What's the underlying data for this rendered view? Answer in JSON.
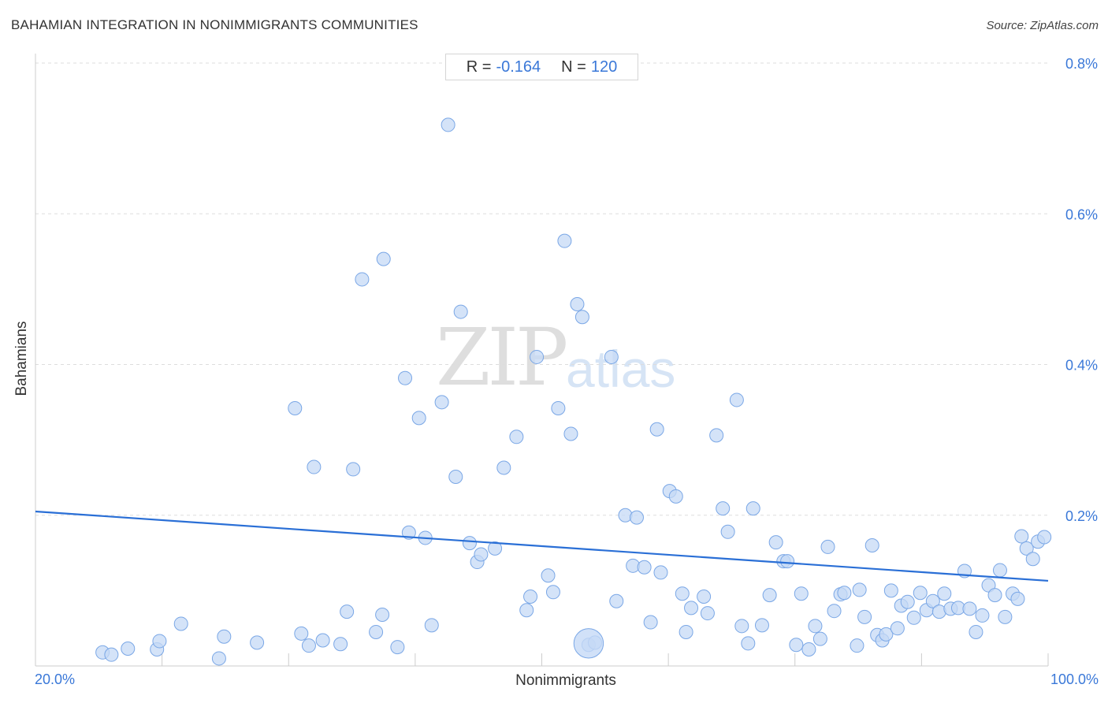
{
  "header": {
    "title": "BAHAMIAN INTEGRATION IN NONIMMIGRANTS COMMUNITIES",
    "source": "Source: ZipAtlas.com"
  },
  "stats": {
    "r_label": "R =",
    "r_value": "-0.164",
    "n_label": "N =",
    "n_value": "120"
  },
  "watermark": {
    "zip": "ZIP",
    "atlas": "atlas"
  },
  "colors": {
    "accent": "#3a78d8",
    "point_fill": "#c5daf6",
    "point_stroke": "#7aa7e6",
    "trend": "#2a6fd6",
    "grid": "#dddddd"
  },
  "chart_data": {
    "type": "scatter",
    "title": "BAHAMIAN INTEGRATION IN NONIMMIGRANTS COMMUNITIES",
    "xlabel": "Nonimmigrants",
    "ylabel": "Bahamians",
    "xlim": [
      20,
      100
    ],
    "ylim": [
      0,
      0.8
    ],
    "x_tick_labels": [
      "20.0%",
      "100.0%"
    ],
    "y_ticks": [
      0.2,
      0.4,
      0.6,
      0.8
    ],
    "y_tick_labels": [
      "0.2%",
      "0.4%",
      "0.6%",
      "0.8%"
    ],
    "grid": "horizontal dashed",
    "trend_line": {
      "x": [
        20,
        100
      ],
      "y": [
        0.205,
        0.113
      ]
    },
    "points": [
      {
        "x": 25.3,
        "y": 0.018
      },
      {
        "x": 26.0,
        "y": 0.015
      },
      {
        "x": 27.3,
        "y": 0.023
      },
      {
        "x": 29.6,
        "y": 0.022
      },
      {
        "x": 29.8,
        "y": 0.033
      },
      {
        "x": 31.5,
        "y": 0.056
      },
      {
        "x": 34.5,
        "y": 0.01
      },
      {
        "x": 34.9,
        "y": 0.039
      },
      {
        "x": 37.5,
        "y": 0.031
      },
      {
        "x": 40.5,
        "y": 0.342
      },
      {
        "x": 41.0,
        "y": 0.043
      },
      {
        "x": 41.6,
        "y": 0.027
      },
      {
        "x": 42.0,
        "y": 0.264
      },
      {
        "x": 42.7,
        "y": 0.034
      },
      {
        "x": 44.1,
        "y": 0.029
      },
      {
        "x": 44.6,
        "y": 0.072
      },
      {
        "x": 45.1,
        "y": 0.261
      },
      {
        "x": 45.8,
        "y": 0.513
      },
      {
        "x": 46.9,
        "y": 0.045
      },
      {
        "x": 47.4,
        "y": 0.068
      },
      {
        "x": 47.5,
        "y": 0.54
      },
      {
        "x": 48.6,
        "y": 0.025
      },
      {
        "x": 49.2,
        "y": 0.382
      },
      {
        "x": 49.5,
        "y": 0.177
      },
      {
        "x": 50.3,
        "y": 0.329
      },
      {
        "x": 50.8,
        "y": 0.17
      },
      {
        "x": 51.3,
        "y": 0.054
      },
      {
        "x": 52.1,
        "y": 0.35
      },
      {
        "x": 52.6,
        "y": 0.718
      },
      {
        "x": 53.2,
        "y": 0.251
      },
      {
        "x": 53.6,
        "y": 0.47
      },
      {
        "x": 54.3,
        "y": 0.163
      },
      {
        "x": 54.9,
        "y": 0.138
      },
      {
        "x": 55.2,
        "y": 0.148
      },
      {
        "x": 56.3,
        "y": 0.156
      },
      {
        "x": 57.0,
        "y": 0.263
      },
      {
        "x": 58.0,
        "y": 0.304
      },
      {
        "x": 58.8,
        "y": 0.074
      },
      {
        "x": 59.1,
        "y": 0.092
      },
      {
        "x": 59.6,
        "y": 0.41
      },
      {
        "x": 60.5,
        "y": 0.12
      },
      {
        "x": 60.9,
        "y": 0.098
      },
      {
        "x": 61.3,
        "y": 0.342
      },
      {
        "x": 62.3,
        "y": 0.308
      },
      {
        "x": 61.8,
        "y": 0.564
      },
      {
        "x": 62.8,
        "y": 0.48
      },
      {
        "x": 63.2,
        "y": 0.463
      },
      {
        "x": 63.7,
        "y": 0.028
      },
      {
        "x": 64.2,
        "y": 0.031
      },
      {
        "x": 65.5,
        "y": 0.41
      },
      {
        "x": 65.9,
        "y": 0.086
      },
      {
        "x": 66.6,
        "y": 0.2
      },
      {
        "x": 67.2,
        "y": 0.133
      },
      {
        "x": 67.5,
        "y": 0.197
      },
      {
        "x": 68.1,
        "y": 0.131
      },
      {
        "x": 68.6,
        "y": 0.058
      },
      {
        "x": 69.1,
        "y": 0.314
      },
      {
        "x": 69.4,
        "y": 0.124
      },
      {
        "x": 70.1,
        "y": 0.232
      },
      {
        "x": 70.6,
        "y": 0.225
      },
      {
        "x": 71.1,
        "y": 0.096
      },
      {
        "x": 71.4,
        "y": 0.045
      },
      {
        "x": 71.8,
        "y": 0.077
      },
      {
        "x": 72.8,
        "y": 0.092
      },
      {
        "x": 73.1,
        "y": 0.07
      },
      {
        "x": 73.8,
        "y": 0.306
      },
      {
        "x": 74.3,
        "y": 0.209
      },
      {
        "x": 74.7,
        "y": 0.178
      },
      {
        "x": 75.4,
        "y": 0.353
      },
      {
        "x": 75.8,
        "y": 0.053
      },
      {
        "x": 76.3,
        "y": 0.03
      },
      {
        "x": 76.7,
        "y": 0.209
      },
      {
        "x": 77.4,
        "y": 0.054
      },
      {
        "x": 78.0,
        "y": 0.094
      },
      {
        "x": 78.5,
        "y": 0.164
      },
      {
        "x": 79.1,
        "y": 0.139
      },
      {
        "x": 79.4,
        "y": 0.139
      },
      {
        "x": 80.1,
        "y": 0.028
      },
      {
        "x": 80.5,
        "y": 0.096
      },
      {
        "x": 81.1,
        "y": 0.022
      },
      {
        "x": 81.6,
        "y": 0.053
      },
      {
        "x": 82.0,
        "y": 0.036
      },
      {
        "x": 82.6,
        "y": 0.158
      },
      {
        "x": 83.1,
        "y": 0.073
      },
      {
        "x": 83.6,
        "y": 0.095
      },
      {
        "x": 83.9,
        "y": 0.097
      },
      {
        "x": 84.9,
        "y": 0.027
      },
      {
        "x": 85.1,
        "y": 0.101
      },
      {
        "x": 85.5,
        "y": 0.065
      },
      {
        "x": 86.1,
        "y": 0.16
      },
      {
        "x": 86.5,
        "y": 0.041
      },
      {
        "x": 86.9,
        "y": 0.034
      },
      {
        "x": 87.2,
        "y": 0.042
      },
      {
        "x": 87.6,
        "y": 0.1
      },
      {
        "x": 88.1,
        "y": 0.05
      },
      {
        "x": 88.4,
        "y": 0.08
      },
      {
        "x": 88.9,
        "y": 0.085
      },
      {
        "x": 89.4,
        "y": 0.064
      },
      {
        "x": 89.9,
        "y": 0.097
      },
      {
        "x": 90.4,
        "y": 0.074
      },
      {
        "x": 90.9,
        "y": 0.086
      },
      {
        "x": 91.4,
        "y": 0.072
      },
      {
        "x": 91.8,
        "y": 0.096
      },
      {
        "x": 92.3,
        "y": 0.076
      },
      {
        "x": 92.9,
        "y": 0.077
      },
      {
        "x": 93.4,
        "y": 0.126
      },
      {
        "x": 93.8,
        "y": 0.076
      },
      {
        "x": 94.3,
        "y": 0.045
      },
      {
        "x": 94.8,
        "y": 0.067
      },
      {
        "x": 95.3,
        "y": 0.107
      },
      {
        "x": 95.8,
        "y": 0.094
      },
      {
        "x": 96.2,
        "y": 0.127
      },
      {
        "x": 96.6,
        "y": 0.065
      },
      {
        "x": 97.2,
        "y": 0.096
      },
      {
        "x": 97.6,
        "y": 0.089
      },
      {
        "x": 97.9,
        "y": 0.172
      },
      {
        "x": 98.3,
        "y": 0.156
      },
      {
        "x": 98.8,
        "y": 0.142
      },
      {
        "x": 99.2,
        "y": 0.165
      },
      {
        "x": 99.7,
        "y": 0.171
      }
    ],
    "large_points": [
      {
        "x": 63.7,
        "y": 0.03,
        "weight": 3
      }
    ]
  }
}
